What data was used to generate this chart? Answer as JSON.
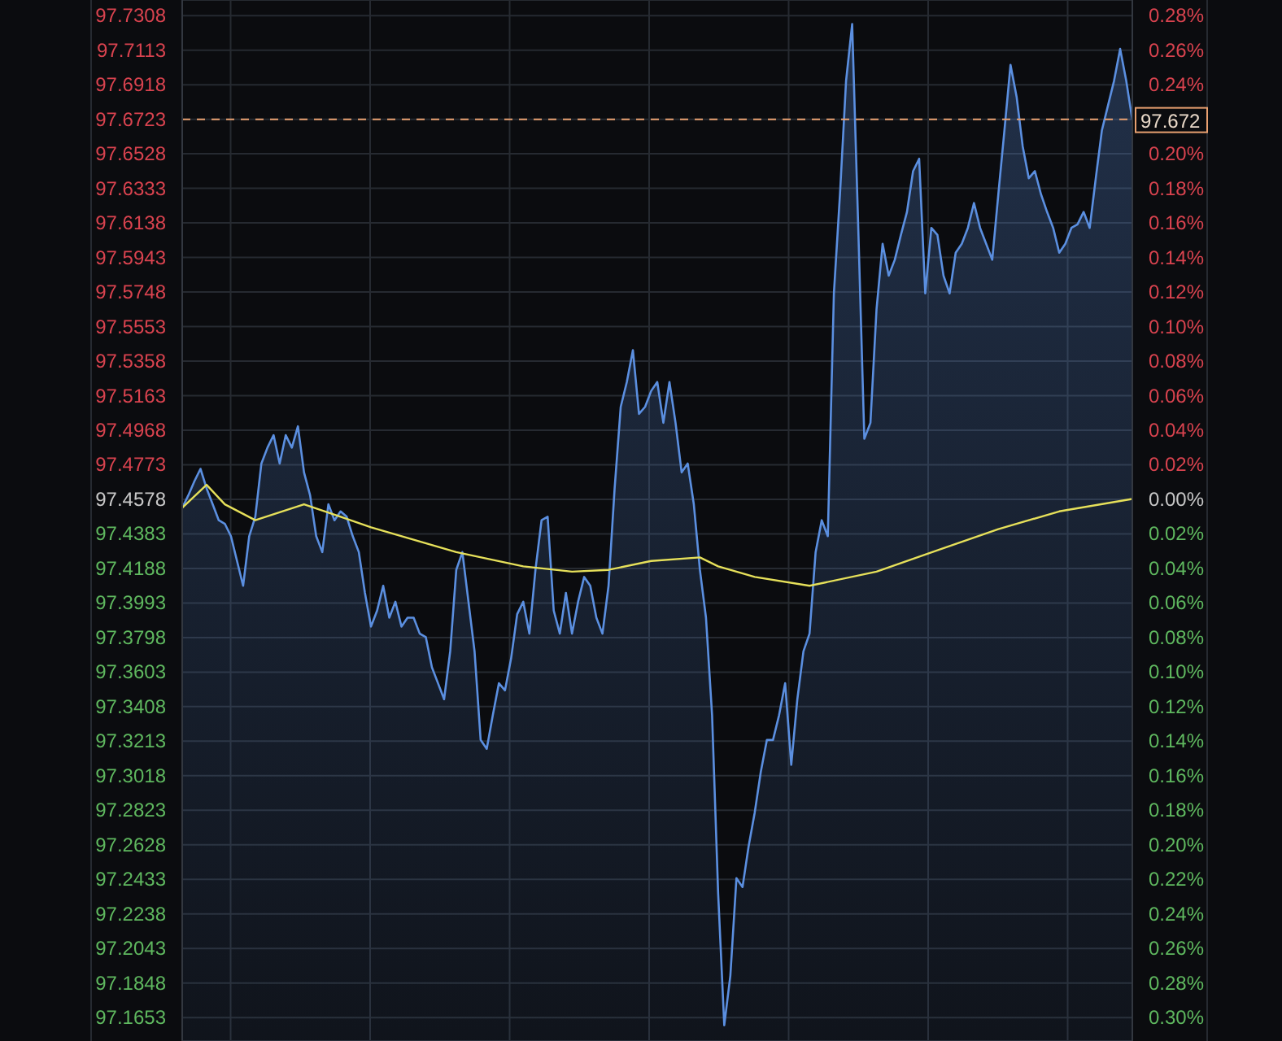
{
  "chart_data": {
    "type": "area",
    "categories": [
      null,
      null,
      null,
      null,
      null,
      null,
      null,
      null,
      null,
      null,
      null,
      null,
      null,
      null,
      null,
      null,
      null,
      null,
      null,
      null,
      null,
      null,
      null,
      null,
      null,
      null,
      null,
      null,
      null,
      null,
      null,
      null,
      null,
      null,
      null,
      null,
      null,
      null,
      null,
      null,
      null,
      null,
      null,
      null,
      null,
      null,
      null,
      null,
      null,
      null,
      null,
      null,
      null,
      null,
      null,
      null,
      null,
      null,
      null,
      null,
      null,
      null,
      null,
      null,
      null,
      null,
      null,
      null,
      null,
      null,
      null,
      null,
      null,
      null,
      null,
      null,
      null,
      null,
      null,
      null,
      null,
      null,
      null,
      null,
      null,
      null,
      null,
      null,
      null,
      null,
      null,
      null,
      null,
      null,
      null,
      null,
      null,
      null,
      null,
      null,
      null,
      null,
      null,
      null,
      null,
      null,
      null,
      null,
      null,
      null,
      null,
      null,
      null,
      null,
      null,
      null,
      null,
      null,
      null,
      null,
      null,
      null,
      null,
      null,
      null,
      null,
      null,
      null,
      null,
      null,
      null,
      null,
      null,
      null,
      null,
      null,
      null,
      null,
      null,
      null,
      null,
      null,
      null,
      null,
      null,
      null,
      null,
      null,
      null,
      null,
      null,
      null,
      null,
      null,
      null,
      null,
      null
    ],
    "series": [
      {
        "color": "#5b8fe0",
        "values": [
          97.453,
          97.46,
          97.468,
          97.475,
          97.464,
          97.455,
          97.446,
          97.444,
          97.437,
          97.423,
          97.409,
          97.437,
          97.448,
          97.478,
          97.487,
          97.494,
          97.478,
          97.494,
          97.487,
          97.499,
          97.473,
          97.46,
          97.437,
          97.428,
          97.455,
          97.446,
          97.451,
          97.448,
          97.437,
          97.428,
          97.405,
          97.386,
          97.395,
          97.409,
          97.391,
          97.4,
          97.386,
          97.391,
          97.391,
          97.382,
          97.38,
          97.363,
          97.354,
          97.345,
          97.372,
          97.418,
          97.428,
          97.4,
          97.372,
          97.322,
          97.317,
          97.336,
          97.354,
          97.35,
          97.368,
          97.393,
          97.4,
          97.382,
          97.418,
          97.446,
          97.448,
          97.395,
          97.382,
          97.405,
          97.382,
          97.4,
          97.414,
          97.409,
          97.391,
          97.382,
          97.409,
          97.464,
          97.51,
          97.524,
          97.542,
          97.506,
          97.51,
          97.519,
          97.524,
          97.501,
          97.524,
          97.501,
          97.473,
          97.478,
          97.455,
          97.418,
          97.391,
          97.336,
          97.235,
          97.161,
          97.189,
          97.244,
          97.239,
          97.262,
          97.281,
          97.304,
          97.322,
          97.322,
          97.336,
          97.354,
          97.308,
          97.345,
          97.372,
          97.382,
          97.428,
          97.446,
          97.437,
          97.574,
          97.63,
          97.694,
          97.726,
          97.611,
          97.492,
          97.501,
          97.565,
          97.602,
          97.584,
          97.593,
          97.607,
          97.62,
          97.643,
          97.65,
          97.574,
          97.611,
          97.607,
          97.584,
          97.574,
          97.597,
          97.602,
          97.611,
          97.625,
          97.611,
          97.602,
          97.593,
          97.63,
          97.666,
          97.703,
          97.685,
          97.657,
          97.639,
          97.643,
          97.63,
          97.62,
          97.611,
          97.597,
          97.602,
          97.611,
          97.613,
          97.62,
          97.611,
          97.639,
          97.666,
          97.68,
          97.694,
          97.712,
          97.694,
          97.672
        ]
      },
      {
        "type": "line",
        "color": "#e6e05a",
        "values": [
          97.453,
          null,
          null,
          null,
          97.466,
          null,
          null,
          97.455,
          null,
          null,
          null,
          null,
          97.446,
          null,
          null,
          null,
          null,
          null,
          null,
          null,
          97.455,
          null,
          null,
          null,
          null,
          null,
          97.448,
          null,
          null,
          null,
          null,
          97.442,
          null,
          null,
          null,
          null,
          null,
          null,
          97.435,
          null,
          null,
          null,
          null,
          null,
          null,
          97.428,
          null,
          null,
          null,
          null,
          null,
          null,
          null,
          null,
          null,
          null,
          97.42,
          null,
          null,
          null,
          null,
          null,
          null,
          null,
          97.417,
          null,
          null,
          null,
          null,
          null,
          97.418,
          null,
          null,
          null,
          null,
          null,
          null,
          97.423,
          null,
          null,
          null,
          null,
          null,
          null,
          null,
          97.425,
          null,
          null,
          97.42,
          null,
          null,
          null,
          null,
          null,
          97.414,
          null,
          null,
          null,
          null,
          null,
          null,
          null,
          null,
          97.409,
          null,
          null,
          null,
          null,
          null,
          null,
          null,
          null,
          null,
          null,
          97.417,
          null,
          null,
          null,
          null,
          null,
          null,
          null,
          null,
          null,
          97.429,
          null,
          null,
          null,
          null,
          null,
          null,
          null,
          null,
          null,
          97.441,
          null,
          null,
          null,
          null,
          null,
          null,
          null,
          null,
          null,
          97.451,
          null,
          null,
          null,
          null,
          null,
          null,
          null,
          null,
          null,
          null,
          null,
          97.458
        ]
      }
    ],
    "ylim": [
      97.1521,
      97.7396
    ],
    "yticks": [
      97.1653,
      97.1848,
      97.2043,
      97.2238,
      97.2433,
      97.2628,
      97.2823,
      97.3018,
      97.3213,
      97.3408,
      97.3603,
      97.3798,
      97.3993,
      97.4188,
      97.4383,
      97.4578,
      97.4773,
      97.4968,
      97.5163,
      97.5358,
      97.5553,
      97.5748,
      97.5943,
      97.6138,
      97.6333,
      97.6528,
      97.6723,
      97.6918,
      97.7113,
      97.7308
    ],
    "y2lim": [
      -0.3135,
      0.289
    ],
    "y2ticks": [
      {
        "value": -0.3,
        "label": "0.30%"
      },
      {
        "value": -0.28,
        "label": "0.28%"
      },
      {
        "value": -0.26,
        "label": "0.26%"
      },
      {
        "value": -0.24,
        "label": "0.24%"
      },
      {
        "value": -0.22,
        "label": "0.22%"
      },
      {
        "value": -0.2,
        "label": "0.20%"
      },
      {
        "value": -0.18,
        "label": "0.18%"
      },
      {
        "value": -0.16,
        "label": "0.16%"
      },
      {
        "value": -0.14,
        "label": "0.14%"
      },
      {
        "value": -0.12,
        "label": "0.12%"
      },
      {
        "value": -0.1,
        "label": "0.10%"
      },
      {
        "value": -0.08,
        "label": "0.08%"
      },
      {
        "value": -0.06,
        "label": "0.06%"
      },
      {
        "value": -0.04,
        "label": "0.04%"
      },
      {
        "value": -0.02,
        "label": "0.02%"
      },
      {
        "value": 0,
        "label": "0.00%"
      },
      {
        "value": 0.02,
        "label": "0.02%"
      },
      {
        "value": 0.04,
        "label": "0.04%"
      },
      {
        "value": 0.06,
        "label": "0.06%"
      },
      {
        "value": 0.08,
        "label": "0.08%"
      },
      {
        "value": 0.1,
        "label": "0.10%"
      },
      {
        "value": 0.12,
        "label": "0.12%"
      },
      {
        "value": 0.14,
        "label": "0.14%"
      },
      {
        "value": 0.16,
        "label": "0.16%"
      },
      {
        "value": 0.18,
        "label": "0.18%"
      },
      {
        "value": 0.2,
        "label": "0.20%"
      },
      {
        "value": 0.22,
        "label": null
      },
      {
        "value": 0.24,
        "label": "0.24%"
      },
      {
        "value": 0.26,
        "label": "0.26%"
      },
      {
        "value": 0.28,
        "label": "0.28%"
      }
    ],
    "ref_lines": [
      {
        "axis": "y",
        "value": 97.6723,
        "label": "97.672",
        "color": "#e8a070",
        "line_style": "dashed"
      }
    ],
    "grid": true,
    "tick_labels": "y",
    "marker": "none"
  }
}
